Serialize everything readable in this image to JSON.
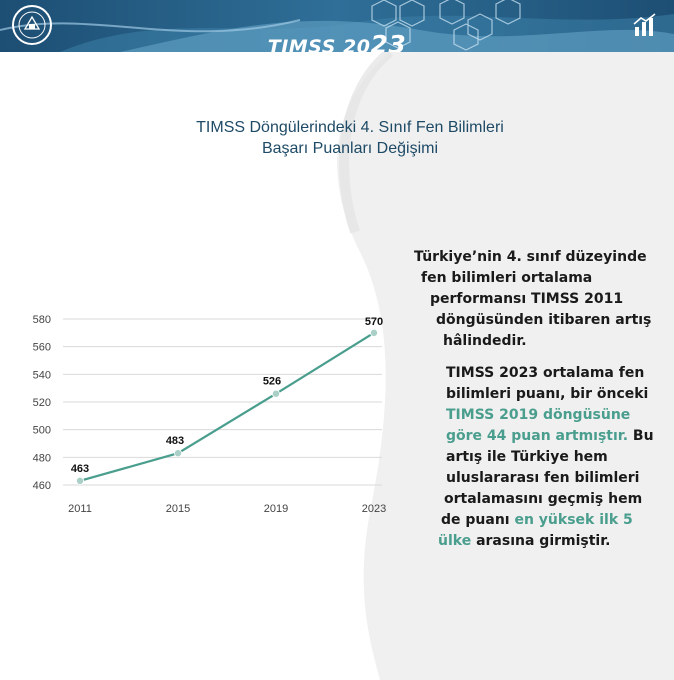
{
  "header": {
    "brand_prefix": "TIMSS 20",
    "brand_suffix": "23",
    "emblem_icon": "ministry-emblem-icon",
    "chart_icon": "bar-chart-icon",
    "colors": {
      "banner_dark": "#1d4e73",
      "banner_light": "#5f9dc2",
      "accent": "#4a9e8e"
    }
  },
  "chart_title": {
    "line1": "TIMSS Döngülerindeki 4. Sınıf Fen Bilimleri",
    "line2": "Başarı Puanları Değişimi"
  },
  "chart_data": {
    "type": "line",
    "title": "TIMSS Döngülerindeki 4. Sınıf Fen Bilimleri Başarı Puanları Değişimi",
    "categories": [
      "2011",
      "2015",
      "2019",
      "2023"
    ],
    "series": [
      {
        "values": [
          463,
          483,
          526,
          570
        ],
        "color": "#4a9e8e"
      }
    ],
    "yticks": [
      "460",
      "480",
      "500",
      "520",
      "540",
      "560",
      "580"
    ],
    "ylim": [
      460,
      580
    ],
    "grid": true,
    "data_labels": [
      "463",
      "483",
      "526",
      "570"
    ]
  },
  "paragraph1": [
    [
      {
        "t": "Türkiye’nin 4. sınıf düzeyinde"
      }
    ],
    [
      {
        "t": "fen bilimleri ortalama"
      }
    ],
    [
      {
        "t": "performansı TIMSS 2011"
      }
    ],
    [
      {
        "t": "döngüsünden itibaren artış"
      }
    ],
    [
      {
        "t": "hâlindedir."
      }
    ]
  ],
  "paragraph2": [
    [
      {
        "t": "TIMSS 2023 ortalama fen"
      }
    ],
    [
      {
        "t": "bilimleri puanı, bir önceki"
      }
    ],
    [
      {
        "t": "TIMSS 2019 döngüsüne",
        "hl": true
      }
    ],
    [
      {
        "t": "göre 44 puan artmıştır.",
        "hl": true
      },
      {
        "t": " Bu"
      }
    ],
    [
      {
        "t": "artış ile Türkiye hem"
      }
    ],
    [
      {
        "t": "uluslararası fen bilimleri"
      }
    ],
    [
      {
        "t": "ortalamasını geçmiş hem"
      }
    ],
    [
      {
        "t": "de puanı "
      },
      {
        "t": "en yüksek ilk 5",
        "hl": true
      }
    ],
    [
      {
        "t": "ülke",
        "hl": true
      },
      {
        "t": " arasına girmiştir."
      }
    ]
  ]
}
